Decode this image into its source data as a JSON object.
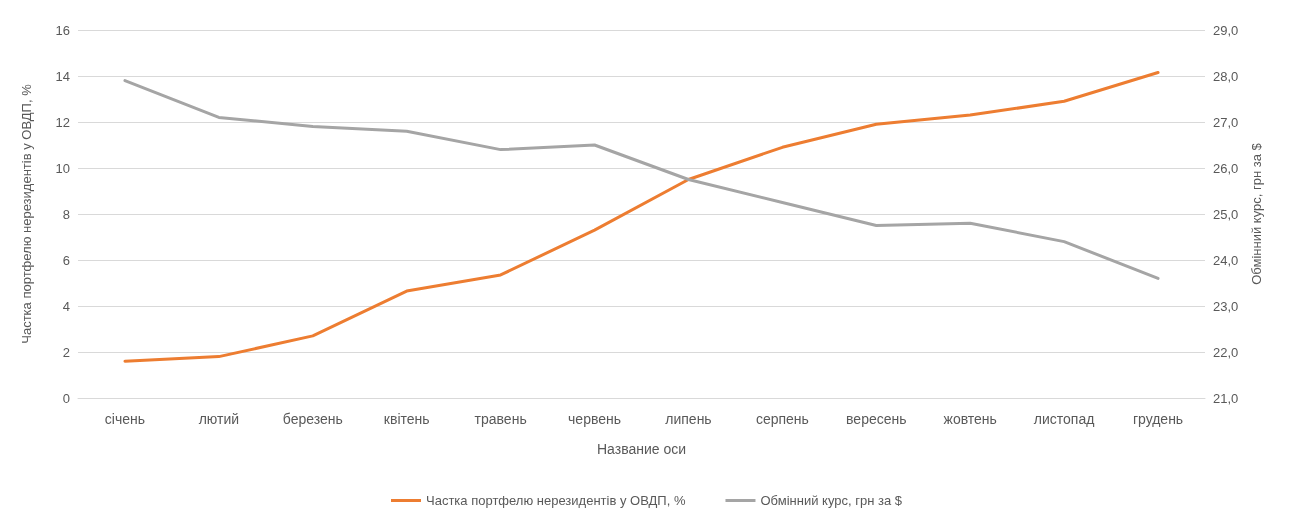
{
  "chart_data": {
    "type": "line",
    "xlabel": "Название оси",
    "ylabel": "Частка портфелю нерезидентів у ОВДП, %",
    "y2label": "Обмінний курс, грн за $",
    "categories": [
      "січень",
      "лютий",
      "березень",
      "квітень",
      "травень",
      "червень",
      "липень",
      "серпень",
      "вересень",
      "жовтень",
      "листопад",
      "грудень"
    ],
    "series": [
      {
        "name": "Частка портфелю нерезидентів у ОВДП, %",
        "color": "#ed7d31",
        "values": [
          1.6,
          1.8,
          2.7,
          4.65,
          5.35,
          7.3,
          9.5,
          10.9,
          11.9,
          12.3,
          12.9,
          14.15
        ]
      },
      {
        "name": "Обмінний курс, грн за $",
        "color": "#a5a5a5",
        "axis": "y2",
        "values": [
          27.9,
          27.1,
          26.9,
          26.8,
          26.4,
          26.5,
          25.75,
          25.25,
          24.75,
          24.8,
          24.4,
          23.6
        ]
      }
    ],
    "ylim": [
      0,
      16
    ],
    "yticks": [
      0,
      2,
      4,
      6,
      8,
      10,
      12,
      14,
      16
    ],
    "y2lim": [
      21,
      29
    ],
    "y2ticks": [
      {
        "value": 21,
        "label": "21,0"
      },
      {
        "value": 22,
        "label": "22,0"
      },
      {
        "value": 23,
        "label": "23,0"
      },
      {
        "value": 24,
        "label": "24,0"
      },
      {
        "value": 25,
        "label": "25,0"
      },
      {
        "value": 26,
        "label": "26,0"
      },
      {
        "value": 27,
        "label": "27,0"
      },
      {
        "value": 28,
        "label": "28,0"
      },
      {
        "value": 29,
        "label": "29,0"
      }
    ],
    "grid": "y",
    "legend": "bottom",
    "marker": "none",
    "line_style": "solid"
  }
}
